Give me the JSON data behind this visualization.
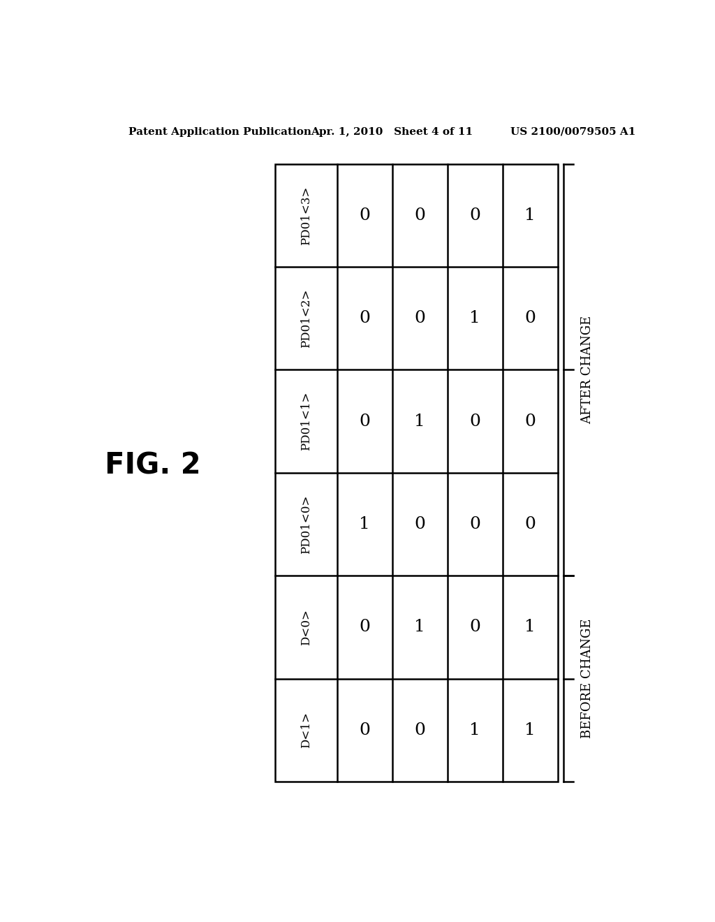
{
  "header_left": "Patent Application Publication",
  "header_mid": "Apr. 1, 2010   Sheet 4 of 11",
  "header_right": "US 2100/0079505 A1",
  "fig_label": "FIG. 2",
  "row_headers": [
    "PD01<3>",
    "PD01<2>",
    "PD01<1>",
    "PD01<0>",
    "D<0>",
    "D<1>"
  ],
  "table_data": [
    [
      0,
      0,
      0,
      1
    ],
    [
      0,
      0,
      1,
      0
    ],
    [
      0,
      1,
      0,
      0
    ],
    [
      1,
      0,
      0,
      0
    ],
    [
      0,
      1,
      0,
      1
    ],
    [
      0,
      0,
      1,
      1
    ]
  ],
  "after_change_rows": [
    0,
    1,
    2,
    3
  ],
  "before_change_rows": [
    4,
    5
  ],
  "label_after": "AFTER CHANGE",
  "label_before": "BEFORE CHANGE",
  "background_color": "#ffffff",
  "table_line_color": "#000000",
  "text_color": "#000000",
  "header_fontsize": 11,
  "fig_label_fontsize": 30,
  "row_header_fontsize": 12,
  "cell_value_fontsize": 18,
  "bracket_label_fontsize": 13
}
